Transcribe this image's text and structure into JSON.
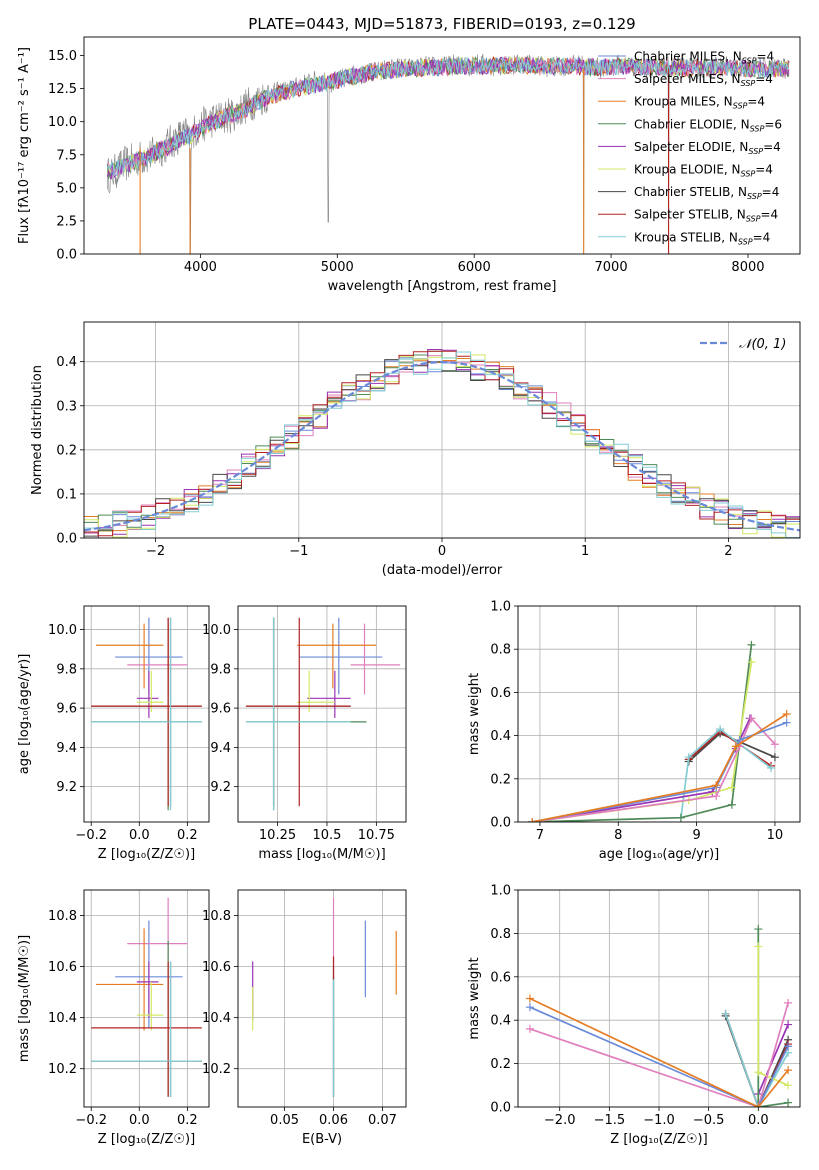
{
  "colors": {
    "chabrier_miles": "#6a8ad8",
    "salpeter_miles": "#e07fbe",
    "kroupa_miles": "#e57d24",
    "chabrier_elodie": "#4f8a59",
    "salpeter_elodie": "#9a34b4",
    "kroupa_elodie": "#d3e864",
    "chabrier_stelib": "#484848",
    "salpeter_stelib": "#b32222",
    "kroupa_stelib": "#82cdd3",
    "gaussian": "#6a8ad8",
    "grid": "#b0b0b0"
  },
  "chart_data": [
    {
      "id": "spectrum",
      "type": "line",
      "title": "PLATE=0443, MJD=51873, FIBERID=0193, z=0.129",
      "xlabel": "wavelength [Angstrom, rest frame]",
      "ylabel": "Flux [fλ10⁻¹⁷ erg cm⁻² s⁻¹ A⁻¹]",
      "xlim": [
        3150,
        8380
      ],
      "ylim": [
        0,
        16.4
      ],
      "grid": false,
      "legend_position": "top-right",
      "xticks": [
        4000,
        5000,
        6000,
        7000,
        8000
      ],
      "yticks": [
        0.0,
        2.5,
        5.0,
        7.5,
        10.0,
        12.5,
        15.0
      ],
      "legend": [
        {
          "imf": "Chabrier",
          "lib": "MILES",
          "n": "4",
          "color_key": "chabrier_miles"
        },
        {
          "imf": "Salpeter",
          "lib": "MILES",
          "n": "4",
          "color_key": "salpeter_miles"
        },
        {
          "imf": "Kroupa",
          "lib": "MILES",
          "n": "4",
          "color_key": "kroupa_miles"
        },
        {
          "imf": "Chabrier",
          "lib": "ELODIE",
          "n": "6",
          "color_key": "chabrier_elodie"
        },
        {
          "imf": "Salpeter",
          "lib": "ELODIE",
          "n": "4",
          "color_key": "salpeter_elodie"
        },
        {
          "imf": "Kroupa",
          "lib": "ELODIE",
          "n": "4",
          "color_key": "kroupa_elodie"
        },
        {
          "imf": "Chabrier",
          "lib": "STELIB",
          "n": "4",
          "color_key": "chabrier_stelib"
        },
        {
          "imf": "Salpeter",
          "lib": "STELIB",
          "n": "4",
          "color_key": "salpeter_stelib"
        },
        {
          "imf": "Kroupa",
          "lib": "STELIB",
          "n": "4",
          "color_key": "kroupa_stelib"
        }
      ],
      "data_series": {
        "x": [
          3350,
          3450,
          3550,
          3650,
          3750,
          3850,
          3950,
          4050,
          4150,
          4250,
          4350,
          4450,
          4550,
          4650,
          4750,
          4850,
          4950,
          5050,
          5150,
          5250,
          5350,
          5450,
          5550,
          5650,
          5750,
          5850,
          5950,
          6050,
          6150,
          6250,
          6350,
          6450,
          6550,
          6650,
          6750,
          6850,
          6950,
          7050,
          7150,
          7250,
          7350,
          7450,
          7550,
          7650,
          7750,
          7850,
          7950,
          8050,
          8150
        ],
        "y": [
          6.0,
          6.8,
          7.2,
          7.5,
          8.2,
          8.9,
          9.2,
          10.0,
          10.3,
          10.6,
          11.3,
          11.8,
          12.2,
          12.4,
          12.8,
          13.1,
          12.9,
          13.3,
          13.6,
          13.7,
          13.9,
          14.1,
          14.0,
          14.2,
          14.1,
          14.3,
          14.2,
          14.4,
          14.2,
          14.3,
          14.4,
          14.3,
          14.1,
          14.2,
          14.3,
          14.2,
          14.0,
          14.3,
          14.2,
          14.1,
          14.0,
          14.2,
          14.1,
          14.0,
          14.1,
          14.2,
          13.9,
          14.1,
          14.0
        ]
      },
      "model_series": {
        "x": [
          3300,
          3500,
          3700,
          3900,
          4100,
          4300,
          4500,
          4700,
          4900,
          5100,
          5300,
          5500,
          5700,
          5900,
          6100,
          6300,
          6500,
          6700,
          6900,
          7100,
          7300,
          7500,
          7700,
          7900,
          8100
        ],
        "y": [
          6.1,
          6.9,
          7.8,
          8.8,
          10.0,
          10.8,
          11.9,
          12.5,
          12.9,
          13.4,
          13.8,
          14.0,
          14.1,
          14.2,
          14.2,
          14.3,
          14.2,
          14.2,
          14.1,
          14.2,
          14.1,
          14.0,
          14.1,
          14.0,
          14.0
        ]
      },
      "features": [
        {
          "x": 4933,
          "ymin": 2.4,
          "note": "dip"
        },
        {
          "x": 3925,
          "ymin": 0.0,
          "note": "dip"
        },
        {
          "x": 6800,
          "ymin": 0.0,
          "note": "dip"
        },
        {
          "x": 7420,
          "ymin": 0.0,
          "note": "dip"
        }
      ]
    },
    {
      "id": "residuals",
      "type": "line",
      "xlabel": "(data-model)/error",
      "ylabel": "Normed distribution",
      "xlim": [
        -2.5,
        2.5
      ],
      "ylim": [
        0,
        0.49
      ],
      "grid": true,
      "legend_position": "top-right",
      "legend": [
        {
          "label": "𝒩(0, 1)",
          "style": "dashed"
        }
      ],
      "xticks": [
        -2,
        -1,
        0,
        1,
        2
      ],
      "yticks": [
        0.0,
        0.1,
        0.2,
        0.3,
        0.4
      ],
      "bin_width": 0.1
    },
    {
      "id": "age_vs_Z",
      "type": "scatter",
      "xlabel": "Z [log₁₀(Z/Z☉)]",
      "ylabel": "age  [log₁₀(age/yr)]",
      "xlim": [
        -0.23,
        0.29
      ],
      "ylim": [
        9.02,
        10.12
      ],
      "grid": true,
      "xticks": [
        -0.2,
        0.0,
        0.2
      ],
      "yticks": [
        9.2,
        9.4,
        9.6,
        9.8,
        10.0
      ]
    },
    {
      "id": "age_vs_mass",
      "type": "scatter",
      "xlabel": "mass [log₁₀(M/M☉)]",
      "xlim": [
        10.05,
        10.9
      ],
      "ylim": [
        9.02,
        10.12
      ],
      "grid": true,
      "xticks": [
        10.25,
        10.5,
        10.75
      ],
      "yticks": [
        9.2,
        9.4,
        9.6,
        9.8,
        10.0
      ]
    },
    {
      "id": "weight_vs_age",
      "type": "line",
      "xlabel": "age  [log₁₀(age/yr)]",
      "ylabel": "mass weight",
      "xlim": [
        6.72,
        10.32
      ],
      "ylim": [
        0.0,
        1.0
      ],
      "grid": true,
      "xticks": [
        7,
        8,
        9,
        10
      ],
      "yticks": [
        0.0,
        0.2,
        0.4,
        0.6,
        0.8,
        1.0
      ]
    },
    {
      "id": "mass_vs_Z",
      "type": "scatter",
      "xlabel": "Z [log₁₀(Z/Z☉)]",
      "ylabel": "mass [log₁₀(M/M☉)]",
      "xlim": [
        -0.23,
        0.29
      ],
      "ylim": [
        10.05,
        10.9
      ],
      "grid": true,
      "xticks": [
        -0.2,
        0.0,
        0.2
      ],
      "yticks": [
        10.2,
        10.4,
        10.6,
        10.8
      ]
    },
    {
      "id": "mass_vs_ebv",
      "type": "scatter",
      "xlabel": "E(B-V)",
      "xlim": [
        0.0405,
        0.0748
      ],
      "ylim": [
        10.05,
        10.9
      ],
      "grid": true,
      "xticks": [
        0.05,
        0.06,
        0.07
      ],
      "yticks": [
        10.2,
        10.4,
        10.6,
        10.8
      ]
    },
    {
      "id": "weight_vs_Z",
      "type": "line",
      "xlabel": "Z [log₁₀(Z/Z☉)]",
      "ylabel": "mass weight",
      "xlim": [
        -2.42,
        0.42
      ],
      "ylim": [
        0.0,
        1.0
      ],
      "grid": true,
      "xticks": [
        -2.0,
        -1.5,
        -1.0,
        -0.5,
        0.0
      ],
      "yticks": [
        0.0,
        0.2,
        0.4,
        0.6,
        0.8,
        1.0
      ]
    }
  ],
  "fits": [
    {
      "key": "chabrier_miles",
      "Z": [
        0.04,
        -0.1,
        0.18
      ],
      "age": [
        9.86,
        9.67,
        10.06
      ],
      "mass": [
        10.56,
        10.36,
        10.78
      ],
      "ebv": [
        0.0665,
        10.48,
        10.78
      ]
    },
    {
      "key": "salpeter_miles",
      "Z": [
        0.12,
        -0.05,
        0.2
      ],
      "age": [
        9.82,
        9.67,
        10.03
      ],
      "mass": [
        10.69,
        10.62,
        10.87
      ],
      "ebv": [
        0.06,
        10.6,
        10.87
      ]
    },
    {
      "key": "kroupa_miles",
      "Z": [
        0.02,
        -0.18,
        0.1
      ],
      "age": [
        9.92,
        9.7,
        10.03
      ],
      "mass": [
        10.53,
        10.35,
        10.75
      ],
      "ebv": [
        0.0728,
        10.49,
        10.74
      ]
    },
    {
      "key": "chabrier_elodie",
      "Z": [
        0.12,
        -0.2,
        0.26
      ],
      "age": [
        9.53,
        9.08,
        10.06
      ],
      "mass": [
        10.23,
        10.09,
        10.7
      ],
      "ebv": [
        0.06,
        10.09,
        10.56
      ]
    },
    {
      "key": "salpeter_elodie",
      "Z": [
        0.04,
        -0.01,
        0.08
      ],
      "age": [
        9.65,
        9.55,
        9.79
      ],
      "mass": [
        10.54,
        10.4,
        10.62
      ],
      "ebv": [
        0.0435,
        10.39,
        10.62
      ]
    },
    {
      "key": "kroupa_elodie",
      "Z": [
        0.05,
        -0.01,
        0.1
      ],
      "age": [
        9.63,
        9.58,
        9.79
      ],
      "mass": [
        10.41,
        10.35,
        10.54
      ],
      "ebv": [
        0.0435,
        10.35,
        10.52
      ]
    },
    {
      "key": "chabrier_stelib",
      "Z": [
        0.13,
        -0.2,
        0.26
      ],
      "age": [
        9.61,
        9.1,
        10.06
      ],
      "mass": [
        10.23,
        10.09,
        10.62
      ],
      "ebv": [
        0.06,
        10.09,
        10.6
      ]
    },
    {
      "key": "salpeter_stelib",
      "Z": [
        0.12,
        -0.2,
        0.26
      ],
      "age": [
        9.61,
        9.1,
        10.06
      ],
      "mass": [
        10.36,
        10.09,
        10.62
      ],
      "ebv": [
        0.06,
        10.55,
        10.64
      ]
    },
    {
      "key": "kroupa_stelib",
      "Z": [
        0.13,
        -0.2,
        0.26
      ],
      "age": [
        9.53,
        9.08,
        10.06
      ],
      "mass": [
        10.23,
        10.09,
        10.62
      ],
      "ebv": [
        0.06,
        10.09,
        10.55
      ]
    }
  ],
  "ssp_age": {
    "chabrier_miles": [
      [
        6.9,
        0.0
      ],
      [
        9.25,
        0.16
      ],
      [
        9.55,
        0.38
      ],
      [
        10.15,
        0.46
      ]
    ],
    "salpeter_miles": [
      [
        6.9,
        0.0
      ],
      [
        9.25,
        0.12
      ],
      [
        9.55,
        0.35
      ],
      [
        9.7,
        0.48
      ],
      [
        10.0,
        0.36
      ]
    ],
    "kroupa_miles": [
      [
        6.9,
        0.0
      ],
      [
        9.25,
        0.17
      ],
      [
        9.5,
        0.35
      ],
      [
        10.15,
        0.5
      ]
    ],
    "chabrier_elodie": [
      [
        6.9,
        0.0
      ],
      [
        8.8,
        0.02
      ],
      [
        9.45,
        0.08
      ],
      [
        9.7,
        0.82
      ]
    ],
    "salpeter_elodie": [
      [
        6.9,
        0.0
      ],
      [
        9.2,
        0.14
      ],
      [
        9.5,
        0.34
      ],
      [
        9.68,
        0.48
      ]
    ],
    "kroupa_elodie": [
      [
        6.9,
        0.0
      ],
      [
        8.9,
        0.1
      ],
      [
        9.45,
        0.16
      ],
      [
        9.7,
        0.74
      ]
    ],
    "chabrier_stelib": [
      [
        8.9,
        0.28
      ],
      [
        9.3,
        0.41
      ],
      [
        10.0,
        0.3
      ]
    ],
    "salpeter_stelib": [
      [
        8.9,
        0.29
      ],
      [
        9.3,
        0.42
      ],
      [
        9.95,
        0.26
      ]
    ],
    "kroupa_stelib": [
      [
        8.8,
        0.02
      ],
      [
        8.9,
        0.3
      ],
      [
        9.3,
        0.43
      ],
      [
        9.95,
        0.25
      ]
    ]
  },
  "ssp_Z": {
    "chabrier_miles": [
      [
        -2.3,
        0.46
      ],
      [
        0.0,
        0.0
      ],
      [
        0.3,
        0.28
      ]
    ],
    "salpeter_miles": [
      [
        -2.3,
        0.36
      ],
      [
        0.0,
        0.0
      ],
      [
        0.3,
        0.48
      ]
    ],
    "kroupa_miles": [
      [
        -2.3,
        0.5
      ],
      [
        0.0,
        0.0
      ],
      [
        0.3,
        0.17
      ]
    ],
    "chabrier_elodie": [
      [
        0.0,
        0.82
      ],
      [
        0.0,
        0.0
      ],
      [
        0.3,
        0.02
      ]
    ],
    "salpeter_elodie": [
      [
        0.0,
        0.06
      ],
      [
        0.3,
        0.38
      ]
    ],
    "kroupa_elodie": [
      [
        0.0,
        0.74
      ],
      [
        0.0,
        0.16
      ],
      [
        0.3,
        0.1
      ]
    ],
    "chabrier_stelib": [
      [
        -0.33,
        0.42
      ],
      [
        0.0,
        0.0
      ],
      [
        0.3,
        0.31
      ]
    ],
    "salpeter_stelib": [
      [
        -0.33,
        0.43
      ],
      [
        0.0,
        0.0
      ],
      [
        0.3,
        0.29
      ]
    ],
    "kroupa_stelib": [
      [
        -0.33,
        0.43
      ],
      [
        0.0,
        0.0
      ],
      [
        0.3,
        0.25
      ]
    ]
  }
}
